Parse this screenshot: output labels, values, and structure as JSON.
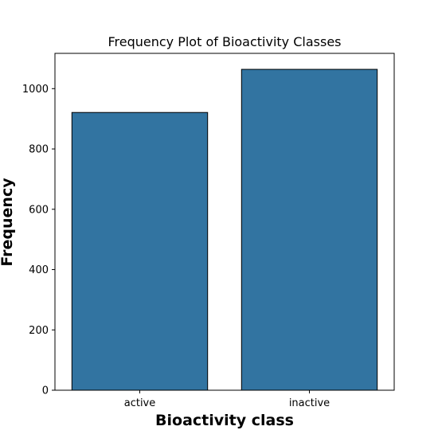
{
  "chart_data": {
    "type": "bar",
    "title": "Frequency Plot of Bioactivity Classes",
    "xlabel": "Bioactivity class",
    "ylabel": "Frequency",
    "categories": [
      "active",
      "inactive"
    ],
    "values": [
      921,
      1064
    ],
    "ylim": [
      0,
      1117
    ],
    "yticks": [
      0,
      200,
      400,
      600,
      800,
      1000
    ],
    "bar_color": "#3274a1",
    "edge_color": "#000000",
    "grid": false,
    "legend": "none"
  }
}
